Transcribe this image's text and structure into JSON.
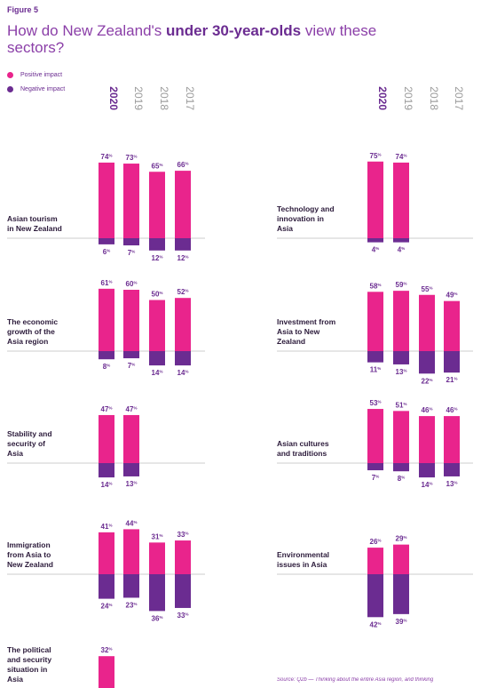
{
  "figure_label": "Figure 5",
  "title": {
    "part1": "How do New Zealand's ",
    "bold": "under 30-year-olds",
    "part2": " view these sectors?"
  },
  "legend": [
    {
      "label": "Positive impact",
      "color": "#e9248c"
    },
    {
      "label": "Negative impact",
      "color": "#6b2c91"
    }
  ],
  "colors": {
    "positive": "#e9248c",
    "negative": "#6b2c91",
    "baseline": "#bdbdbd",
    "year_current": "#6b2c91",
    "year_other": "#9a9a9a"
  },
  "source": "Source: Q2b — Thinking about the entire Asia region, and thinking",
  "chart_data": [
    {
      "type": "bar",
      "title": "Asian tourism in New Zealand",
      "categories": [
        "2020",
        "2019",
        "2018",
        "2017"
      ],
      "series": [
        {
          "name": "Positive impact",
          "values": [
            74,
            73,
            65,
            66
          ]
        },
        {
          "name": "Negative impact",
          "values": [
            6,
            7,
            12,
            12
          ]
        }
      ],
      "unit": "%"
    },
    {
      "type": "bar",
      "title": "Technology and innovation in Asia",
      "categories": [
        "2020",
        "2019",
        "2018",
        "2017"
      ],
      "series": [
        {
          "name": "Positive impact",
          "values": [
            75,
            74,
            null,
            null
          ]
        },
        {
          "name": "Negative impact",
          "values": [
            4,
            4,
            null,
            null
          ]
        }
      ],
      "unit": "%"
    },
    {
      "type": "bar",
      "title": "The economic growth of the Asia region",
      "categories": [
        "2020",
        "2019",
        "2018",
        "2017"
      ],
      "series": [
        {
          "name": "Positive impact",
          "values": [
            61,
            60,
            50,
            52
          ]
        },
        {
          "name": "Negative impact",
          "values": [
            8,
            7,
            14,
            14
          ]
        }
      ],
      "unit": "%"
    },
    {
      "type": "bar",
      "title": "Investment from Asia to New Zealand",
      "categories": [
        "2020",
        "2019",
        "2018",
        "2017"
      ],
      "series": [
        {
          "name": "Positive impact",
          "values": [
            58,
            59,
            55,
            49
          ]
        },
        {
          "name": "Negative impact",
          "values": [
            11,
            13,
            22,
            21
          ]
        }
      ],
      "unit": "%"
    },
    {
      "type": "bar",
      "title": "Stability and security of Asia",
      "categories": [
        "2020",
        "2019",
        "2018",
        "2017"
      ],
      "series": [
        {
          "name": "Positive impact",
          "values": [
            47,
            47,
            null,
            null
          ]
        },
        {
          "name": "Negative impact",
          "values": [
            14,
            13,
            null,
            null
          ]
        }
      ],
      "unit": "%"
    },
    {
      "type": "bar",
      "title": "Asian cultures and traditions",
      "categories": [
        "2020",
        "2019",
        "2018",
        "2017"
      ],
      "series": [
        {
          "name": "Positive impact",
          "values": [
            53,
            51,
            46,
            46
          ]
        },
        {
          "name": "Negative impact",
          "values": [
            7,
            8,
            14,
            13
          ]
        }
      ],
      "unit": "%"
    },
    {
      "type": "bar",
      "title": "Immigration from Asia to New Zealand",
      "categories": [
        "2020",
        "2019",
        "2018",
        "2017"
      ],
      "series": [
        {
          "name": "Positive impact",
          "values": [
            41,
            44,
            31,
            33
          ]
        },
        {
          "name": "Negative impact",
          "values": [
            24,
            23,
            36,
            33
          ]
        }
      ],
      "unit": "%"
    },
    {
      "type": "bar",
      "title": "Environmental issues in Asia",
      "categories": [
        "2020",
        "2019",
        "2018",
        "2017"
      ],
      "series": [
        {
          "name": "Positive impact",
          "values": [
            26,
            29,
            null,
            null
          ]
        },
        {
          "name": "Negative impact",
          "values": [
            42,
            39,
            null,
            null
          ]
        }
      ],
      "unit": "%"
    },
    {
      "type": "bar",
      "title": "The political and security situation in Asia",
      "categories": [
        "2020",
        "2019",
        "2018",
        "2017"
      ],
      "series": [
        {
          "name": "Positive impact",
          "values": [
            32,
            null,
            null,
            null
          ]
        },
        {
          "name": "Negative impact",
          "values": [
            null,
            null,
            null,
            null
          ]
        }
      ],
      "unit": "%"
    }
  ]
}
